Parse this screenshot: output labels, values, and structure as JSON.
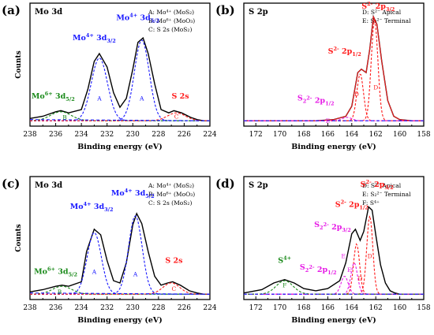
{
  "colors": {
    "mo": "#1a1aff",
    "s": "#ff1a1a",
    "green": "#1a8a1a",
    "magenta": "#e61ae6",
    "env": "#000000",
    "data": "#ff1a1a"
  },
  "chart_data": [
    {
      "type": "line",
      "panel_label": "(a)",
      "title": "Mo 3d",
      "xlabel": "Binding energy (eV)",
      "ylabel": "Counts",
      "xlim": [
        238,
        224
      ],
      "ylim": [
        0,
        1
      ],
      "xticks": [
        "238",
        "236",
        "234",
        "232",
        "230",
        "228",
        "226",
        "224"
      ],
      "legend": [
        "A: Mo⁴⁺ (MoS₂)",
        "B: Mo⁶⁺ (MoO₃)",
        "C: S 2s (MoS₂)"
      ],
      "series": [
        {
          "kind": "envelope",
          "color": "#000000",
          "x": [
            238.0,
            237.0,
            236.0,
            235.6,
            235.0,
            234.0,
            233.5,
            233.0,
            232.6,
            232.0,
            231.5,
            231.0,
            230.5,
            230.0,
            229.6,
            229.2,
            228.8,
            228.3,
            227.8,
            227.2,
            226.8,
            226.2,
            225.5,
            225.0,
            224.5,
            224.0
          ],
          "y": [
            0.04,
            0.06,
            0.1,
            0.11,
            0.09,
            0.12,
            0.3,
            0.55,
            0.62,
            0.5,
            0.27,
            0.14,
            0.22,
            0.48,
            0.72,
            0.76,
            0.62,
            0.35,
            0.12,
            0.09,
            0.11,
            0.09,
            0.05,
            0.03,
            0.02,
            0.02
          ]
        },
        {
          "kind": "peak",
          "label": "A",
          "color": "#1a1aff",
          "center": 232.6,
          "height": 0.56,
          "width": 1.25
        },
        {
          "kind": "peak",
          "label": "A",
          "color": "#1a1aff",
          "center": 229.3,
          "height": 0.72,
          "width": 1.15
        },
        {
          "kind": "peak",
          "label": "B",
          "color": "#1a8a1a",
          "center": 235.6,
          "height": 0.08,
          "width": 1.6
        },
        {
          "kind": "peak",
          "label": "C",
          "color": "#ff1a1a",
          "center": 226.6,
          "height": 0.07,
          "width": 1.4
        },
        {
          "kind": "baseline",
          "color": "#1a1aff",
          "x": [
            238,
            224
          ],
          "y": [
            0.03,
            0.02
          ]
        }
      ],
      "annotations": [
        {
          "base": "Mo",
          "sup": "4+",
          "tail": " 3d",
          "sub": "3/2",
          "color": "#1a1aff",
          "x": 233.0,
          "y": 0.74
        },
        {
          "base": "Mo",
          "sup": "4+",
          "tail": " 3d",
          "sub": "5/2",
          "color": "#1a1aff",
          "x": 229.6,
          "y": 0.92
        },
        {
          "base": "Mo",
          "sup": "6+",
          "tail": " 3d",
          "sub": "5/2",
          "color": "#1a8a1a",
          "x": 236.2,
          "y": 0.22
        },
        {
          "base": "S 2s",
          "sup": "",
          "tail": "",
          "sub": "",
          "color": "#ff1a1a",
          "x": 226.3,
          "y": 0.22
        },
        {
          "base": "A",
          "sup": "",
          "tail": "",
          "sub": "",
          "color": "#1a1aff",
          "x": 232.6,
          "y": 0.2
        },
        {
          "base": "A",
          "sup": "",
          "tail": "",
          "sub": "",
          "color": "#1a1aff",
          "x": 229.3,
          "y": 0.2
        },
        {
          "base": "B",
          "sup": "",
          "tail": "",
          "sub": "",
          "color": "#1a8a1a",
          "x": 235.3,
          "y": 0.03
        },
        {
          "base": "C",
          "sup": "",
          "tail": "",
          "sub": "",
          "color": "#ff1a1a",
          "x": 226.6,
          "y": 0.04
        }
      ]
    },
    {
      "type": "line",
      "panel_label": "(b)",
      "title": "S 2p",
      "xlabel": "Binding energy (eV)",
      "ylabel": "",
      "xlim": [
        173,
        158
      ],
      "ylim": [
        0,
        1
      ],
      "xticks": [
        "172",
        "170",
        "168",
        "166",
        "164",
        "162",
        "160",
        "158"
      ],
      "legend": [
        "D: S²⁻ Apical",
        "E: S₂²⁻ Terminal"
      ],
      "series": [
        {
          "kind": "envelope",
          "color": "#000000",
          "x": [
            173.0,
            170.0,
            167.0,
            165.5,
            164.5,
            164.0,
            163.5,
            163.2,
            162.8,
            162.5,
            162.2,
            161.9,
            161.5,
            161.0,
            160.5,
            160.0,
            159.0,
            158.0
          ],
          "y": [
            0.02,
            0.02,
            0.02,
            0.03,
            0.06,
            0.15,
            0.45,
            0.48,
            0.45,
            0.66,
            0.95,
            0.88,
            0.55,
            0.2,
            0.06,
            0.03,
            0.02,
            0.02
          ]
        },
        {
          "kind": "data",
          "color": "#ff1a1a",
          "x": [
            173.0,
            170.0,
            167.0,
            165.5,
            164.5,
            164.0,
            163.5,
            163.2,
            162.8,
            162.5,
            162.2,
            161.9,
            161.5,
            161.0,
            160.5,
            160.0,
            159.0,
            158.0
          ],
          "y": [
            0.02,
            0.02,
            0.02,
            0.03,
            0.06,
            0.15,
            0.45,
            0.48,
            0.45,
            0.66,
            0.95,
            0.88,
            0.55,
            0.2,
            0.06,
            0.03,
            0.02,
            0.02
          ]
        },
        {
          "kind": "peak",
          "label": "D",
          "color": "#ff1a1a",
          "center": 163.3,
          "height": 0.42,
          "width": 0.55
        },
        {
          "kind": "peak",
          "label": "D",
          "color": "#ff1a1a",
          "center": 162.1,
          "height": 0.9,
          "width": 0.55
        },
        {
          "kind": "peak",
          "label": "E",
          "color": "#e61ae6",
          "center": 164.4,
          "height": 0.03,
          "width": 0.8
        },
        {
          "kind": "baseline",
          "color": "#1a1aff",
          "x": [
            173,
            158
          ],
          "y": [
            0.02,
            0.02
          ]
        }
      ],
      "annotations": [
        {
          "base": "S",
          "sup": "2-",
          "tail": " 2p",
          "sub": "3/2",
          "color": "#ff1a1a",
          "x": 161.8,
          "y": 1.02
        },
        {
          "base": "S",
          "sup": "2-",
          "tail": " 2p",
          "sub": "1/2",
          "color": "#ff1a1a",
          "x": 164.6,
          "y": 0.62
        },
        {
          "base": "S",
          "sup": "2-",
          "tail": " 2p",
          "sub": "1/2",
          "prefix_sub": "2",
          "color": "#e61ae6",
          "x": 167.0,
          "y": 0.2
        },
        {
          "base": "D",
          "sup": "",
          "tail": "",
          "sub": "",
          "color": "#ff1a1a",
          "x": 163.6,
          "y": 0.24
        },
        {
          "base": "D",
          "sup": "",
          "tail": "",
          "sub": "",
          "color": "#ff1a1a",
          "x": 162.0,
          "y": 0.3
        },
        {
          "base": "E",
          "sup": "",
          "tail": "",
          "sub": "",
          "color": "#e61ae6",
          "x": 166.0,
          "y": 0.0
        }
      ]
    },
    {
      "type": "line",
      "panel_label": "(c)",
      "title": "Mo 3d",
      "xlabel": "Binding energy (eV)",
      "ylabel": "Counts",
      "xlim": [
        238,
        224
      ],
      "ylim": [
        0,
        1
      ],
      "xticks": [
        "238",
        "236",
        "234",
        "232",
        "230",
        "228",
        "226",
        "224"
      ],
      "legend": [
        "A: Mo⁴⁺ (MoS₂)",
        "B: Mo⁶⁺ (MoO₃)",
        "C: S 2s (MoS₂)"
      ],
      "series": [
        {
          "kind": "envelope",
          "color": "#000000",
          "x": [
            238.0,
            237.0,
            236.0,
            235.5,
            235.0,
            234.0,
            233.6,
            233.0,
            232.5,
            232.0,
            231.5,
            231.0,
            230.5,
            230.0,
            229.7,
            229.3,
            228.8,
            228.3,
            227.8,
            227.3,
            226.9,
            226.3,
            225.6,
            225.0,
            224.5,
            224.0
          ],
          "y": [
            0.04,
            0.06,
            0.09,
            0.1,
            0.09,
            0.13,
            0.4,
            0.6,
            0.55,
            0.32,
            0.14,
            0.12,
            0.3,
            0.64,
            0.74,
            0.65,
            0.4,
            0.18,
            0.1,
            0.12,
            0.13,
            0.1,
            0.05,
            0.03,
            0.02,
            0.02
          ]
        },
        {
          "kind": "peak",
          "label": "A",
          "color": "#1a1aff",
          "center": 233.0,
          "height": 0.55,
          "width": 1.1
        },
        {
          "kind": "peak",
          "label": "A",
          "color": "#1a1aff",
          "center": 229.8,
          "height": 0.7,
          "width": 1.05
        },
        {
          "kind": "peak",
          "label": "B",
          "color": "#1a8a1a",
          "center": 235.5,
          "height": 0.07,
          "width": 1.5
        },
        {
          "kind": "peak",
          "label": "C",
          "color": "#ff1a1a",
          "center": 227.0,
          "height": 0.1,
          "width": 1.3
        },
        {
          "kind": "baseline",
          "color": "#1a1aff",
          "x": [
            238,
            224
          ],
          "y": [
            0.03,
            0.02
          ]
        }
      ],
      "annotations": [
        {
          "base": "Mo",
          "sup": "4+",
          "tail": " 3d",
          "sub": "3/2",
          "color": "#1a1aff",
          "x": 233.2,
          "y": 0.78
        },
        {
          "base": "Mo",
          "sup": "4+",
          "tail": " 3d",
          "sub": "5/2",
          "color": "#1a1aff",
          "x": 230.0,
          "y": 0.9
        },
        {
          "base": "Mo",
          "sup": "6+",
          "tail": " 3d",
          "sub": "5/2",
          "color": "#1a8a1a",
          "x": 236.0,
          "y": 0.2
        },
        {
          "base": "S 2s",
          "sup": "",
          "tail": "",
          "sub": "",
          "color": "#ff1a1a",
          "x": 226.8,
          "y": 0.3
        },
        {
          "base": "A",
          "sup": "",
          "tail": "",
          "sub": "",
          "color": "#1a1aff",
          "x": 233.0,
          "y": 0.2
        },
        {
          "base": "A",
          "sup": "",
          "tail": "",
          "sub": "",
          "color": "#1a1aff",
          "x": 229.8,
          "y": 0.18
        },
        {
          "base": "B",
          "sup": "",
          "tail": "",
          "sub": "",
          "color": "#1a8a1a",
          "x": 235.7,
          "y": 0.02
        },
        {
          "base": "C",
          "sup": "",
          "tail": "",
          "sub": "",
          "color": "#ff1a1a",
          "x": 226.8,
          "y": 0.05
        }
      ]
    },
    {
      "type": "line",
      "panel_label": "(d)",
      "title": "S 2p",
      "xlabel": "Binding energy (eV)",
      "ylabel": "",
      "xlim": [
        173,
        158
      ],
      "ylim": [
        0,
        1
      ],
      "xticks": [
        "172",
        "170",
        "168",
        "166",
        "164",
        "162",
        "160",
        "158"
      ],
      "legend": [
        "D: S²⁻ Apical",
        "E: S₂²⁻ Terminal",
        "F: S⁴⁺"
      ],
      "series": [
        {
          "kind": "envelope",
          "color": "#000000",
          "x": [
            173.0,
            171.5,
            170.5,
            169.6,
            168.8,
            168.0,
            167.0,
            166.0,
            165.0,
            164.5,
            164.0,
            163.7,
            163.3,
            163.0,
            162.6,
            162.3,
            162.0,
            161.6,
            161.2,
            160.8,
            160.4,
            160.0,
            159.0,
            158.0
          ],
          "y": [
            0.03,
            0.06,
            0.12,
            0.15,
            0.12,
            0.07,
            0.05,
            0.07,
            0.14,
            0.3,
            0.56,
            0.6,
            0.5,
            0.58,
            0.8,
            0.77,
            0.55,
            0.28,
            0.12,
            0.05,
            0.03,
            0.02,
            0.02,
            0.02
          ]
        },
        {
          "kind": "peak",
          "label": "D",
          "color": "#ff1a1a",
          "center": 163.6,
          "height": 0.45,
          "width": 0.5
        },
        {
          "kind": "peak",
          "label": "D",
          "color": "#ff1a1a",
          "center": 162.5,
          "height": 0.7,
          "width": 0.5
        },
        {
          "kind": "peak",
          "label": "E",
          "color": "#e61ae6",
          "center": 164.6,
          "height": 0.16,
          "width": 0.6
        },
        {
          "kind": "peak",
          "label": "E",
          "color": "#e61ae6",
          "center": 163.8,
          "height": 0.28,
          "width": 0.55
        },
        {
          "kind": "peak",
          "label": "F",
          "color": "#1a8a1a",
          "center": 169.6,
          "height": 0.12,
          "width": 1.4
        },
        {
          "kind": "baseline",
          "color": "#1a1aff",
          "x": [
            173,
            158
          ],
          "y": [
            0.02,
            0.02
          ]
        }
      ],
      "annotations": [
        {
          "base": "S",
          "sup": "2-",
          "tail": " 2p",
          "sub": "3/2",
          "color": "#ff1a1a",
          "x": 161.9,
          "y": 0.98
        },
        {
          "base": "S",
          "sup": "2-",
          "tail": " 2p",
          "sub": "1/2",
          "color": "#ff1a1a",
          "x": 164.0,
          "y": 0.8
        },
        {
          "base": "S",
          "sup": "2-",
          "tail": " 2p",
          "sub": "3/2",
          "prefix_sub": "2",
          "color": "#e61ae6",
          "x": 165.6,
          "y": 0.62
        },
        {
          "base": "S",
          "sup": "2-",
          "tail": " 2p",
          "sub": "1/2",
          "prefix_sub": "2",
          "color": "#e61ae6",
          "x": 166.8,
          "y": 0.24
        },
        {
          "base": "S",
          "sup": "4+",
          "tail": "",
          "sub": "",
          "color": "#1a8a1a",
          "x": 169.6,
          "y": 0.3
        },
        {
          "base": "F",
          "sup": "",
          "tail": "",
          "sub": "",
          "color": "#1a8a1a",
          "x": 169.6,
          "y": 0.08
        },
        {
          "base": "E",
          "sup": "",
          "tail": "",
          "sub": "",
          "color": "#e61ae6",
          "x": 164.7,
          "y": 0.34
        },
        {
          "base": "E",
          "sup": "",
          "tail": "",
          "sub": "",
          "color": "#e61ae6",
          "x": 164.2,
          "y": 0.22
        },
        {
          "base": "D",
          "sup": "",
          "tail": "",
          "sub": "",
          "color": "#ff1a1a",
          "x": 163.3,
          "y": 0.14
        },
        {
          "base": "D",
          "sup": "",
          "tail": "",
          "sub": "",
          "color": "#ff1a1a",
          "x": 162.5,
          "y": 0.34
        }
      ]
    }
  ]
}
